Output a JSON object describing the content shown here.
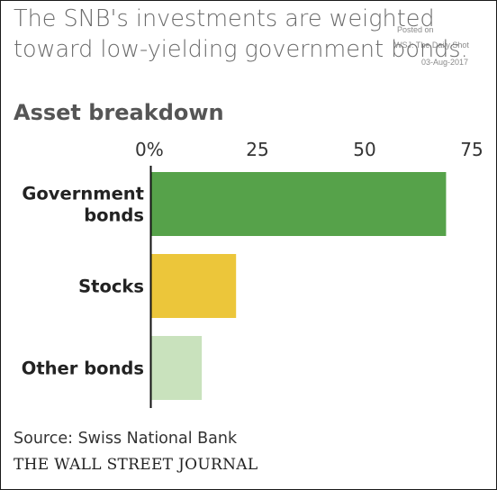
{
  "title": "The SNB's investments are weighted toward low-yielding government bonds.",
  "subtitle": "Asset breakdown",
  "watermark": {
    "posted": "Posted on",
    "source": "WSJ: The Daily Shot",
    "date": "03-Aug-2017"
  },
  "footer": {
    "source": "Source: Swiss National Bank",
    "publisher": "THE WALL STREET JOURNAL"
  },
  "chart_data": {
    "type": "bar",
    "orientation": "horizontal",
    "categories": [
      "Government\nbonds",
      "Stocks",
      "Other bonds"
    ],
    "values": [
      69,
      20,
      12
    ],
    "colors": [
      "#56a24a",
      "#ecc63a",
      "#c9e2bd"
    ],
    "xlim": [
      0,
      75
    ],
    "ticks": [
      0,
      25,
      50,
      75
    ],
    "tick_labels": [
      "0%",
      "25",
      "50",
      "75"
    ],
    "grid": false,
    "title": "Asset breakdown",
    "xlabel": "",
    "ylabel": ""
  }
}
